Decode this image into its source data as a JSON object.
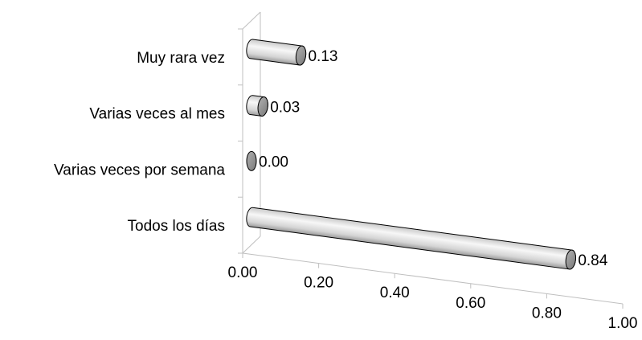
{
  "chart_data": {
    "type": "bar",
    "orientation": "horizontal",
    "style": "3d-cylinder",
    "categories": [
      "Muy rara vez",
      "Varias veces al mes",
      "Varias veces por semana",
      "Todos los días"
    ],
    "values": [
      0.13,
      0.03,
      0.0,
      0.84
    ],
    "value_labels": [
      "0.13",
      "0.03",
      "0.00",
      "0.84"
    ],
    "xlim": [
      0,
      1
    ],
    "xticks": [
      "0.00",
      "0.20",
      "0.40",
      "0.60",
      "0.80",
      "1.00"
    ],
    "title": "",
    "xlabel": "",
    "ylabel": "",
    "grid": false,
    "legend": "none",
    "colors": {
      "bar_fill": "#e6e6e6",
      "bar_shade": "#9a9a9a",
      "bar_edge": "#000000",
      "axis": "#bfbfbf"
    }
  }
}
